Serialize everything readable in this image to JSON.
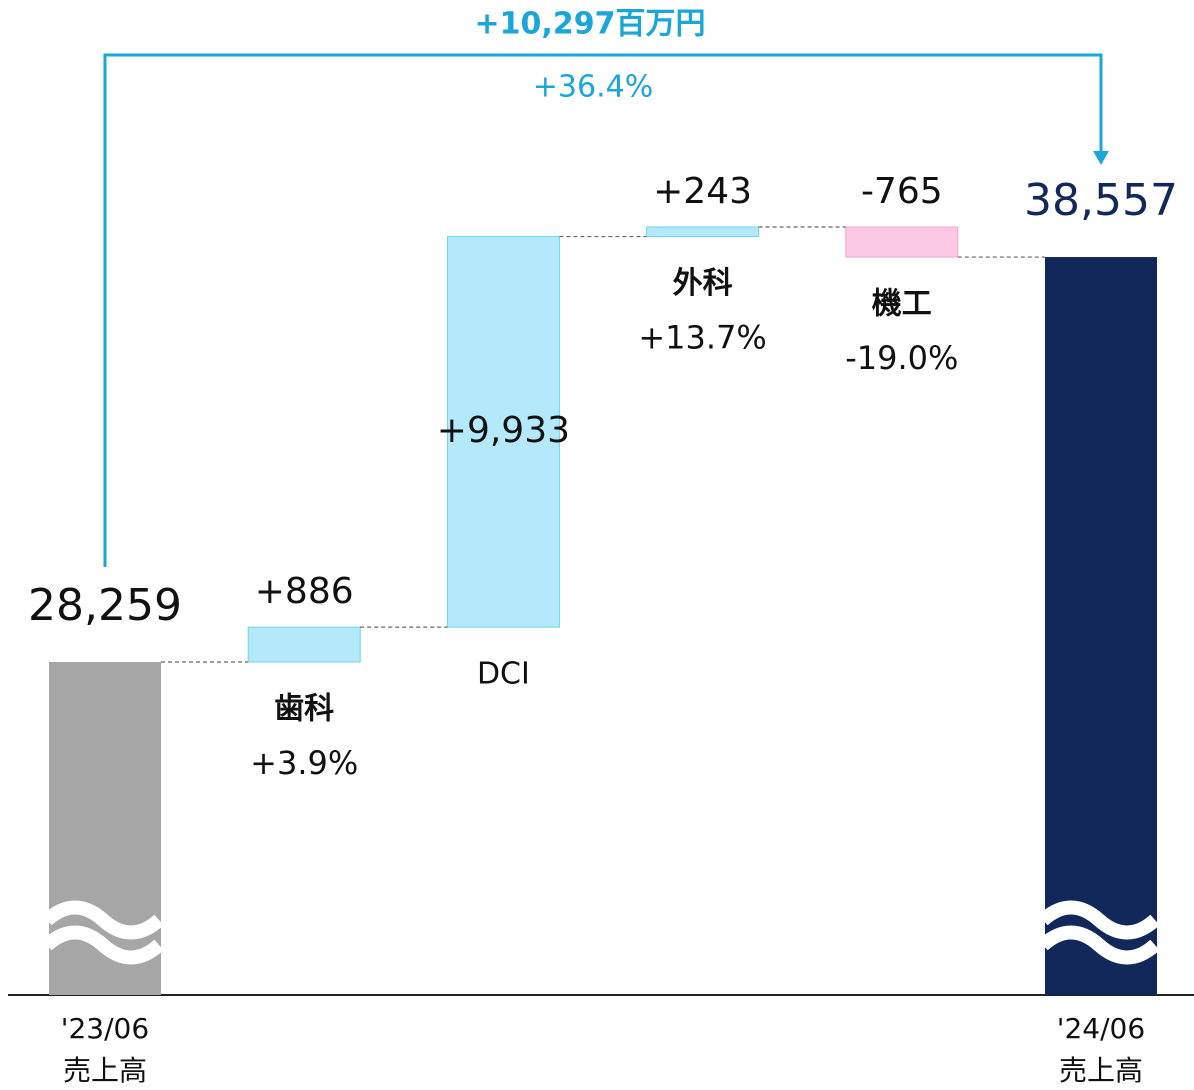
{
  "chart_data": {
    "type": "waterfall",
    "categories": [
      "売上高",
      "歯科",
      "DCI",
      "外科",
      "機工",
      "売上高"
    ],
    "periods": [
      "'23/06",
      null,
      null,
      null,
      null,
      "'24/06"
    ],
    "kinds": [
      "total",
      "delta",
      "delta",
      "delta",
      "delta",
      "total"
    ],
    "values": [
      28259,
      886,
      9933,
      243,
      -765,
      38557
    ],
    "value_labels": [
      "28,259",
      "+886",
      "+9,933",
      "+243",
      "-765",
      "38,557"
    ],
    "change_pct": [
      null,
      3.9,
      null,
      13.7,
      -19.0,
      null
    ],
    "change_pct_labels": [
      null,
      "+3.9%",
      null,
      "+13.7%",
      "-19.0%",
      null
    ],
    "total_change": {
      "value": 10297,
      "label": "+10,297百万円"
    },
    "total_change_pct": {
      "value": 36.4,
      "label": "+36.4%"
    },
    "colors": {
      "start": "#a6a6a6",
      "end": "#12285a",
      "increase": "#b3e9fb",
      "decrease": "#fdc8e3",
      "bracket": "#1aa6d8"
    }
  }
}
